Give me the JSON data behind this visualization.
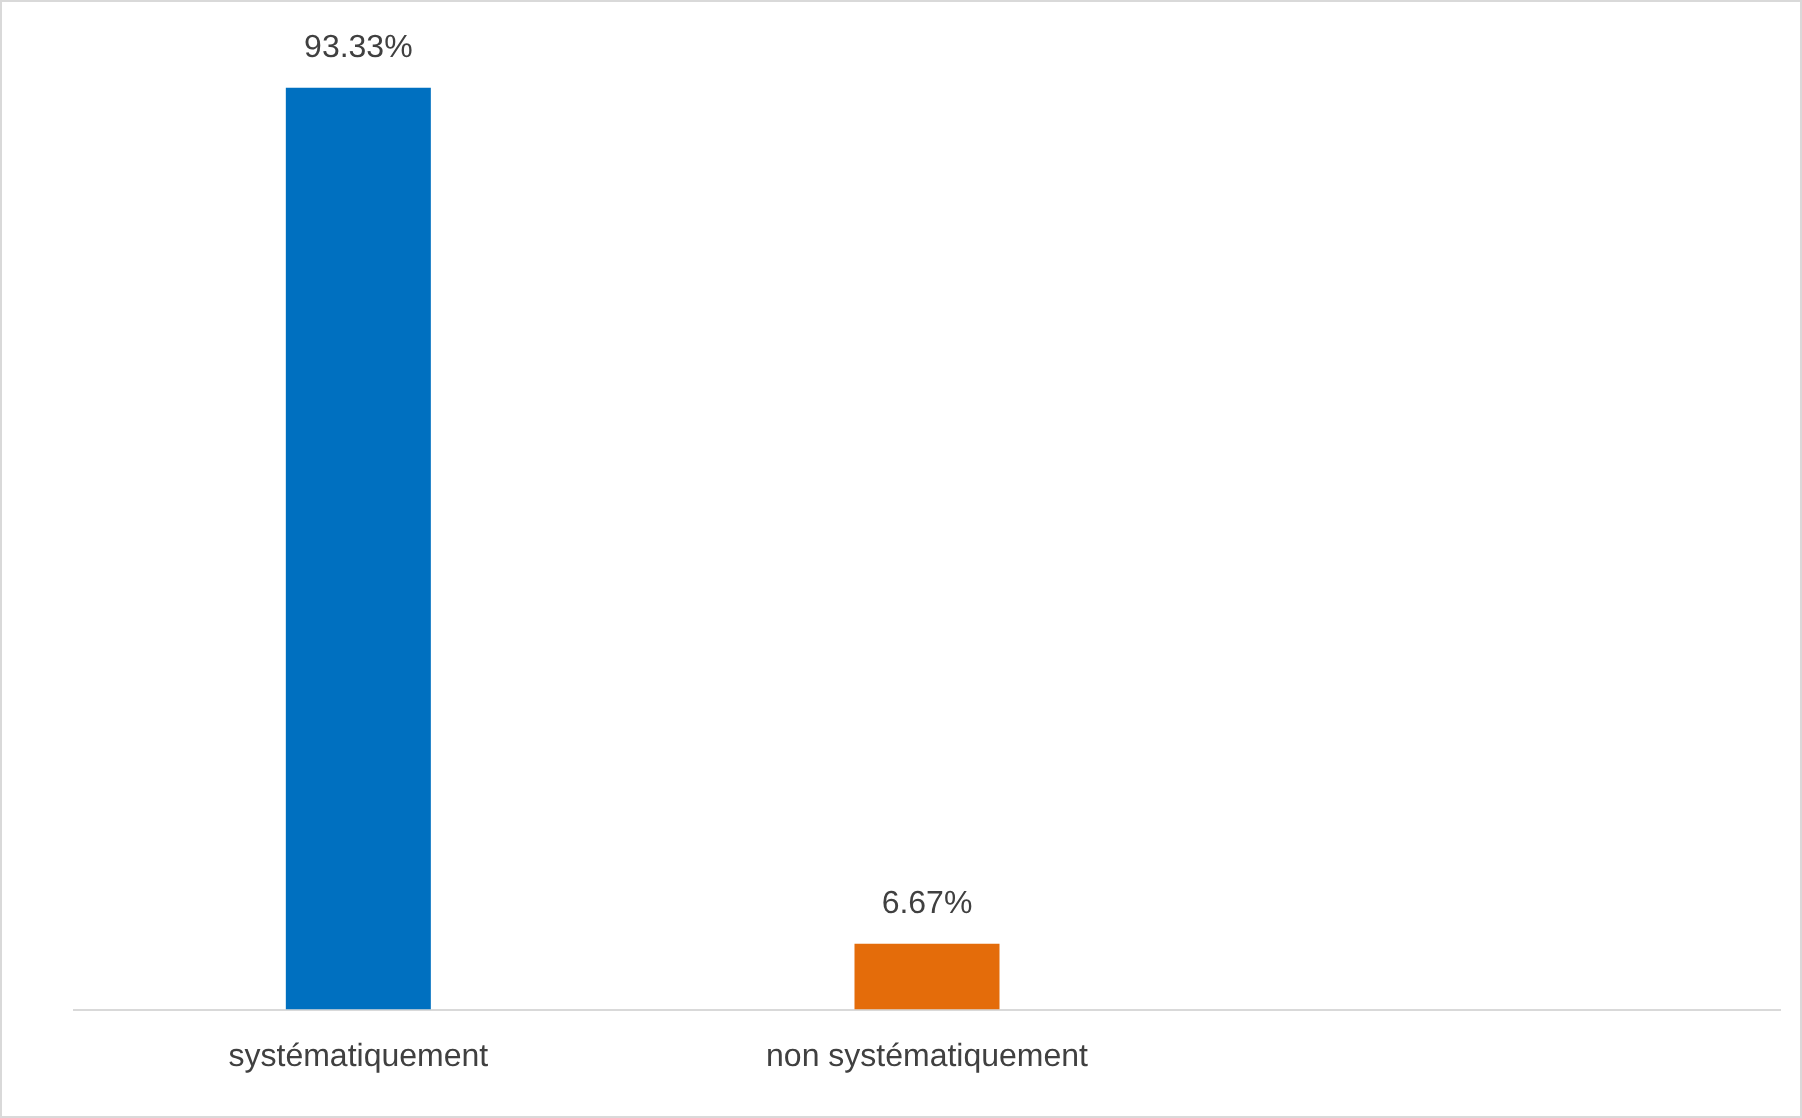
{
  "chart_data": {
    "type": "bar",
    "categories": [
      "systématiquement",
      "non systématiquement",
      null
    ],
    "values": [
      93.33,
      6.67,
      null
    ],
    "colors": [
      "#0070c0",
      "#e46c0a",
      null
    ],
    "value_labels": [
      "93.33%",
      "6.67%",
      null
    ],
    "grid": false,
    "legend": false,
    "tick_labels": "x"
  }
}
